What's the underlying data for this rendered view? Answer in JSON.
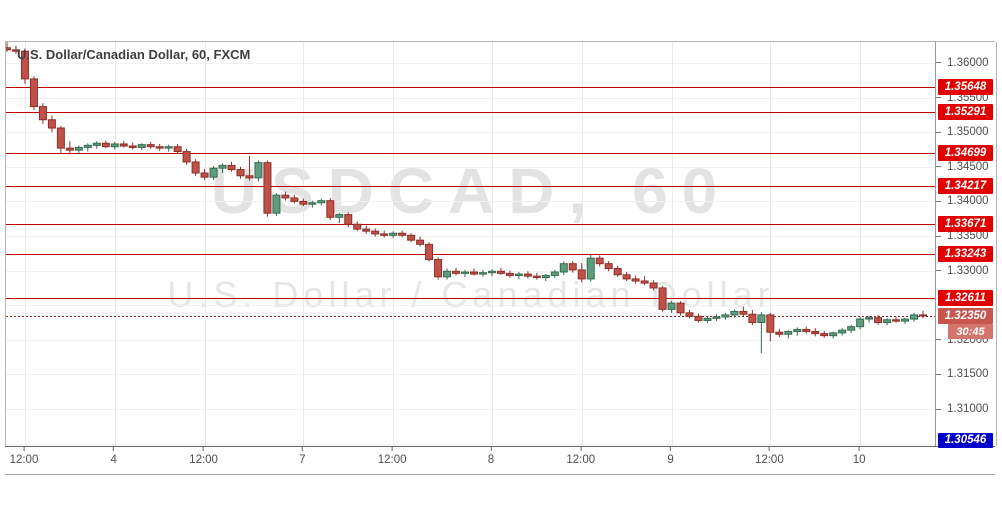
{
  "header": {
    "title": "U.S. Dollar/Canadian Dollar, 60, FXCM"
  },
  "watermark": {
    "line1": "USDCAD, 60",
    "line2": "U.S. Dollar / Canadian Dollar"
  },
  "colors": {
    "up_fill": "#5f9c7c",
    "up_border": "#336b51",
    "down_fill": "#c0504a",
    "down_border": "#8e2f29",
    "level_line": "#c00000",
    "level_badge": "#e00000",
    "current_line": "#8b2222",
    "current_badge": "#c7564f",
    "countdown_badge": "#d3756a",
    "alert_badge": "#0000cc",
    "axis_text": "#4f4f4f",
    "grid_h": "#f1f1f1",
    "grid_v": "#e9e9e9",
    "watermark": "#e3e3e3"
  },
  "chart_data": {
    "type": "candlestick",
    "symbol": "USDCAD",
    "interval": "60",
    "exchange": "FXCM",
    "title": "U.S. Dollar/Canadian Dollar, 60, FXCM",
    "ylim": [
      1.30466,
      1.36303
    ],
    "grid_step": 0.005,
    "price_axis_ticks": [
      {
        "label": "1.36000",
        "price": 1.36
      },
      {
        "label": "1.35500",
        "price": 1.355
      },
      {
        "label": "1.35000",
        "price": 1.35
      },
      {
        "label": "1.34500",
        "price": 1.345
      },
      {
        "label": "1.34000",
        "price": 1.34
      },
      {
        "label": "1.33500",
        "price": 1.335
      },
      {
        "label": "1.33000",
        "price": 1.33
      },
      {
        "label": "1.32000",
        "price": 1.32
      },
      {
        "label": "1.31500",
        "price": 1.315
      },
      {
        "label": "1.31000",
        "price": 1.31
      }
    ],
    "time_axis_ticks": [
      {
        "label": "12:00",
        "candle_index": 2
      },
      {
        "label": "4",
        "candle_index": 12
      },
      {
        "label": "12:00",
        "candle_index": 22
      },
      {
        "label": "7",
        "candle_index": 33
      },
      {
        "label": "12:00",
        "candle_index": 43
      },
      {
        "label": "8",
        "candle_index": 54
      },
      {
        "label": "12:00",
        "candle_index": 64
      },
      {
        "label": "9",
        "candle_index": 74
      },
      {
        "label": "12:00",
        "candle_index": 85
      },
      {
        "label": "10",
        "candle_index": 95
      }
    ],
    "levels": [
      {
        "label": "1.35648",
        "price": 1.35648
      },
      {
        "label": "1.35291",
        "price": 1.35291
      },
      {
        "label": "1.34699",
        "price": 1.34699
      },
      {
        "label": "1.34217",
        "price": 1.34217
      },
      {
        "label": "1.33671",
        "price": 1.33671
      },
      {
        "label": "1.33243",
        "price": 1.33243
      },
      {
        "label": "1.32611",
        "price": 1.32611
      }
    ],
    "current_price": {
      "label": "1.32350",
      "price": 1.3235,
      "countdown": "30:45"
    },
    "alert_level": {
      "label": "1.30546",
      "price": 1.30546
    },
    "candles": [
      [
        1.3622,
        1.363,
        1.3616,
        1.3619
      ],
      [
        1.3619,
        1.3625,
        1.3613,
        1.3617
      ],
      [
        1.3617,
        1.3621,
        1.357,
        1.3577
      ],
      [
        1.3577,
        1.3581,
        1.3532,
        1.3537
      ],
      [
        1.3537,
        1.3542,
        1.3512,
        1.3518
      ],
      [
        1.3518,
        1.3524,
        1.35,
        1.3506
      ],
      [
        1.3506,
        1.3509,
        1.347,
        1.3477
      ],
      [
        1.3477,
        1.3487,
        1.3468,
        1.3474
      ],
      [
        1.3474,
        1.3481,
        1.3469,
        1.3478
      ],
      [
        1.3478,
        1.3484,
        1.3472,
        1.3481
      ],
      [
        1.3481,
        1.3487,
        1.3476,
        1.3484
      ],
      [
        1.3484,
        1.3488,
        1.3477,
        1.3479
      ],
      [
        1.3479,
        1.3486,
        1.3475,
        1.3483
      ],
      [
        1.3483,
        1.3487,
        1.3478,
        1.348
      ],
      [
        1.348,
        1.3485,
        1.3475,
        1.3478
      ],
      [
        1.3478,
        1.3484,
        1.3474,
        1.3482
      ],
      [
        1.3482,
        1.3486,
        1.3476,
        1.3479
      ],
      [
        1.3479,
        1.3483,
        1.3473,
        1.3477
      ],
      [
        1.3477,
        1.3482,
        1.3472,
        1.3479
      ],
      [
        1.3479,
        1.3483,
        1.3469,
        1.3472
      ],
      [
        1.3472,
        1.3476,
        1.3453,
        1.3457
      ],
      [
        1.3457,
        1.3461,
        1.3437,
        1.3441
      ],
      [
        1.3441,
        1.3447,
        1.3431,
        1.3435
      ],
      [
        1.3435,
        1.3451,
        1.3431,
        1.3448
      ],
      [
        1.3448,
        1.3455,
        1.3441,
        1.3452
      ],
      [
        1.3452,
        1.3457,
        1.3443,
        1.3446
      ],
      [
        1.3446,
        1.345,
        1.3433,
        1.3437
      ],
      [
        1.3437,
        1.3466,
        1.343,
        1.3434
      ],
      [
        1.3434,
        1.3459,
        1.3429,
        1.3456
      ],
      [
        1.3456,
        1.3459,
        1.3378,
        1.3383
      ],
      [
        1.3383,
        1.3412,
        1.3379,
        1.3409
      ],
      [
        1.3409,
        1.3414,
        1.3401,
        1.3405
      ],
      [
        1.3405,
        1.3409,
        1.3397,
        1.34
      ],
      [
        1.34,
        1.3404,
        1.3393,
        1.3396
      ],
      [
        1.3396,
        1.3401,
        1.3391,
        1.3398
      ],
      [
        1.3398,
        1.3404,
        1.3394,
        1.3401
      ],
      [
        1.3401,
        1.3405,
        1.3373,
        1.3377
      ],
      [
        1.3377,
        1.3383,
        1.3369,
        1.3381
      ],
      [
        1.3381,
        1.3384,
        1.3363,
        1.3367
      ],
      [
        1.3367,
        1.3371,
        1.3357,
        1.336
      ],
      [
        1.336,
        1.3365,
        1.3353,
        1.3357
      ],
      [
        1.3357,
        1.3361,
        1.3349,
        1.3353
      ],
      [
        1.3353,
        1.3358,
        1.3348,
        1.3351
      ],
      [
        1.3351,
        1.3357,
        1.3347,
        1.3354
      ],
      [
        1.3354,
        1.3358,
        1.3348,
        1.3351
      ],
      [
        1.3351,
        1.3354,
        1.3341,
        1.3344
      ],
      [
        1.3344,
        1.3349,
        1.3335,
        1.3338
      ],
      [
        1.3338,
        1.3341,
        1.3313,
        1.3316
      ],
      [
        1.3316,
        1.3319,
        1.3287,
        1.3291
      ],
      [
        1.3291,
        1.3303,
        1.3287,
        1.3299
      ],
      [
        1.3299,
        1.3304,
        1.3293,
        1.3296
      ],
      [
        1.3296,
        1.3301,
        1.3291,
        1.3298
      ],
      [
        1.3298,
        1.3303,
        1.3293,
        1.3295
      ],
      [
        1.3295,
        1.3301,
        1.3291,
        1.3297
      ],
      [
        1.3297,
        1.3302,
        1.3292,
        1.3299
      ],
      [
        1.3299,
        1.3304,
        1.3294,
        1.3296
      ],
      [
        1.3296,
        1.33,
        1.329,
        1.3293
      ],
      [
        1.3293,
        1.3298,
        1.3288,
        1.3295
      ],
      [
        1.3295,
        1.3299,
        1.3289,
        1.3292
      ],
      [
        1.3292,
        1.3297,
        1.3287,
        1.329
      ],
      [
        1.329,
        1.3295,
        1.3285,
        1.3293
      ],
      [
        1.3293,
        1.3301,
        1.3289,
        1.3298
      ],
      [
        1.3298,
        1.3313,
        1.3294,
        1.331
      ],
      [
        1.331,
        1.3314,
        1.3297,
        1.3301
      ],
      [
        1.3301,
        1.3311,
        1.3283,
        1.3288
      ],
      [
        1.3288,
        1.3323,
        1.3284,
        1.3318
      ],
      [
        1.3318,
        1.3322,
        1.3306,
        1.331
      ],
      [
        1.331,
        1.3314,
        1.3299,
        1.3303
      ],
      [
        1.3303,
        1.3307,
        1.3291,
        1.3294
      ],
      [
        1.3294,
        1.3298,
        1.3285,
        1.3288
      ],
      [
        1.3288,
        1.3293,
        1.3281,
        1.3285
      ],
      [
        1.3285,
        1.3292,
        1.3279,
        1.3282
      ],
      [
        1.3282,
        1.3286,
        1.3271,
        1.3275
      ],
      [
        1.3275,
        1.3278,
        1.3241,
        1.3244
      ],
      [
        1.3244,
        1.3256,
        1.3239,
        1.3253
      ],
      [
        1.3253,
        1.3256,
        1.3235,
        1.3239
      ],
      [
        1.3239,
        1.3243,
        1.3231,
        1.3234
      ],
      [
        1.3234,
        1.3238,
        1.3225,
        1.3228
      ],
      [
        1.3228,
        1.3234,
        1.3224,
        1.3231
      ],
      [
        1.3231,
        1.3237,
        1.3227,
        1.3233
      ],
      [
        1.3233,
        1.3239,
        1.3229,
        1.3236
      ],
      [
        1.3236,
        1.3244,
        1.3232,
        1.3241
      ],
      [
        1.3241,
        1.3248,
        1.3234,
        1.3237
      ],
      [
        1.3237,
        1.3243,
        1.3221,
        1.3225
      ],
      [
        1.3225,
        1.324,
        1.3181,
        1.3236
      ],
      [
        1.3236,
        1.3239,
        1.3198,
        1.3211
      ],
      [
        1.3211,
        1.3216,
        1.3204,
        1.3208
      ],
      [
        1.3208,
        1.3214,
        1.3202,
        1.3212
      ],
      [
        1.3212,
        1.3218,
        1.3206,
        1.3215
      ],
      [
        1.3215,
        1.3219,
        1.3209,
        1.3212
      ],
      [
        1.3212,
        1.3217,
        1.3205,
        1.3209
      ],
      [
        1.3209,
        1.3213,
        1.3203,
        1.3206
      ],
      [
        1.3206,
        1.3212,
        1.3202,
        1.321
      ],
      [
        1.321,
        1.3217,
        1.3206,
        1.3214
      ],
      [
        1.3214,
        1.3222,
        1.321,
        1.3219
      ],
      [
        1.3219,
        1.3233,
        1.3215,
        1.323
      ],
      [
        1.323,
        1.3235,
        1.3225,
        1.3232
      ],
      [
        1.3232,
        1.3236,
        1.3222,
        1.3225
      ],
      [
        1.3225,
        1.3231,
        1.3221,
        1.3229
      ],
      [
        1.3229,
        1.3233,
        1.3225,
        1.3227
      ],
      [
        1.3227,
        1.3232,
        1.3223,
        1.323
      ],
      [
        1.323,
        1.3239,
        1.3226,
        1.3236
      ],
      [
        1.3236,
        1.3242,
        1.3231,
        1.3235
      ]
    ]
  }
}
